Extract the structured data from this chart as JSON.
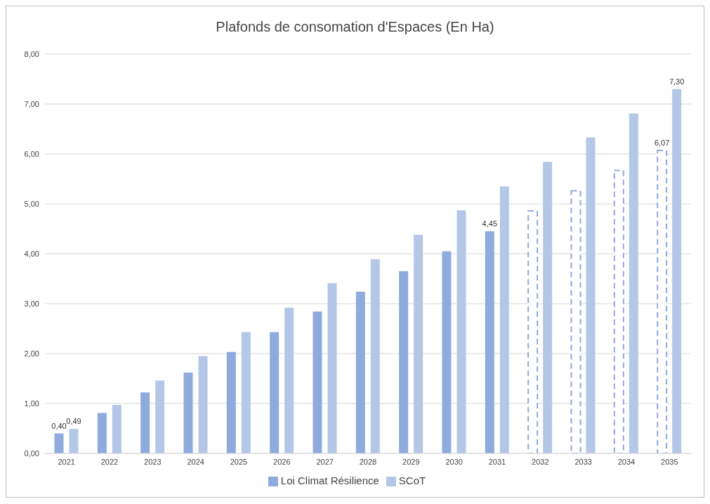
{
  "chart_data": {
    "type": "bar",
    "title": "Plafonds de consomation d'Espaces (En Ha)",
    "categories": [
      "2021",
      "2022",
      "2023",
      "2024",
      "2025",
      "2026",
      "2027",
      "2028",
      "2029",
      "2030",
      "2031",
      "2032",
      "2033",
      "2034",
      "2035"
    ],
    "series": [
      {
        "name": "Loi Climat Résilience",
        "color": "#8faadc",
        "values": [
          0.4,
          0.81,
          1.22,
          1.62,
          2.03,
          2.43,
          2.84,
          3.24,
          3.65,
          4.05,
          4.45,
          null,
          null,
          null,
          null
        ],
        "value_labels": [
          "0,40",
          null,
          null,
          null,
          null,
          null,
          null,
          null,
          null,
          null,
          "4,45",
          null,
          null,
          null,
          null
        ]
      },
      {
        "name": "SCoT",
        "color": "#b4c7e7",
        "values": [
          0.49,
          0.97,
          1.46,
          1.95,
          2.43,
          2.92,
          3.41,
          3.89,
          4.38,
          4.87,
          5.35,
          5.84,
          6.33,
          6.81,
          7.3
        ],
        "value_labels": [
          "0,49",
          null,
          null,
          null,
          null,
          null,
          null,
          null,
          null,
          null,
          null,
          null,
          null,
          null,
          "7,30"
        ]
      },
      {
        "color": "#8faadc",
        "line_style": "dashed",
        "values": [
          null,
          null,
          null,
          null,
          null,
          null,
          null,
          null,
          null,
          null,
          null,
          4.86,
          5.26,
          5.67,
          6.07
        ],
        "value_labels": [
          null,
          null,
          null,
          null,
          null,
          null,
          null,
          null,
          null,
          null,
          null,
          null,
          null,
          null,
          "6,07"
        ]
      }
    ],
    "ylim": [
      0,
      8
    ],
    "yticks": [
      {
        "value": 0,
        "label": "0,00"
      },
      {
        "value": 1,
        "label": "1,00"
      },
      {
        "value": 2,
        "label": "2,00"
      },
      {
        "value": 3,
        "label": "3,00"
      },
      {
        "value": 4,
        "label": "4,00"
      },
      {
        "value": 5,
        "label": "5,00"
      },
      {
        "value": 6,
        "label": "6,00"
      },
      {
        "value": 7,
        "label": "7,00"
      },
      {
        "value": 8,
        "label": "8,00"
      }
    ],
    "grid": "y",
    "legend": "bottom"
  }
}
